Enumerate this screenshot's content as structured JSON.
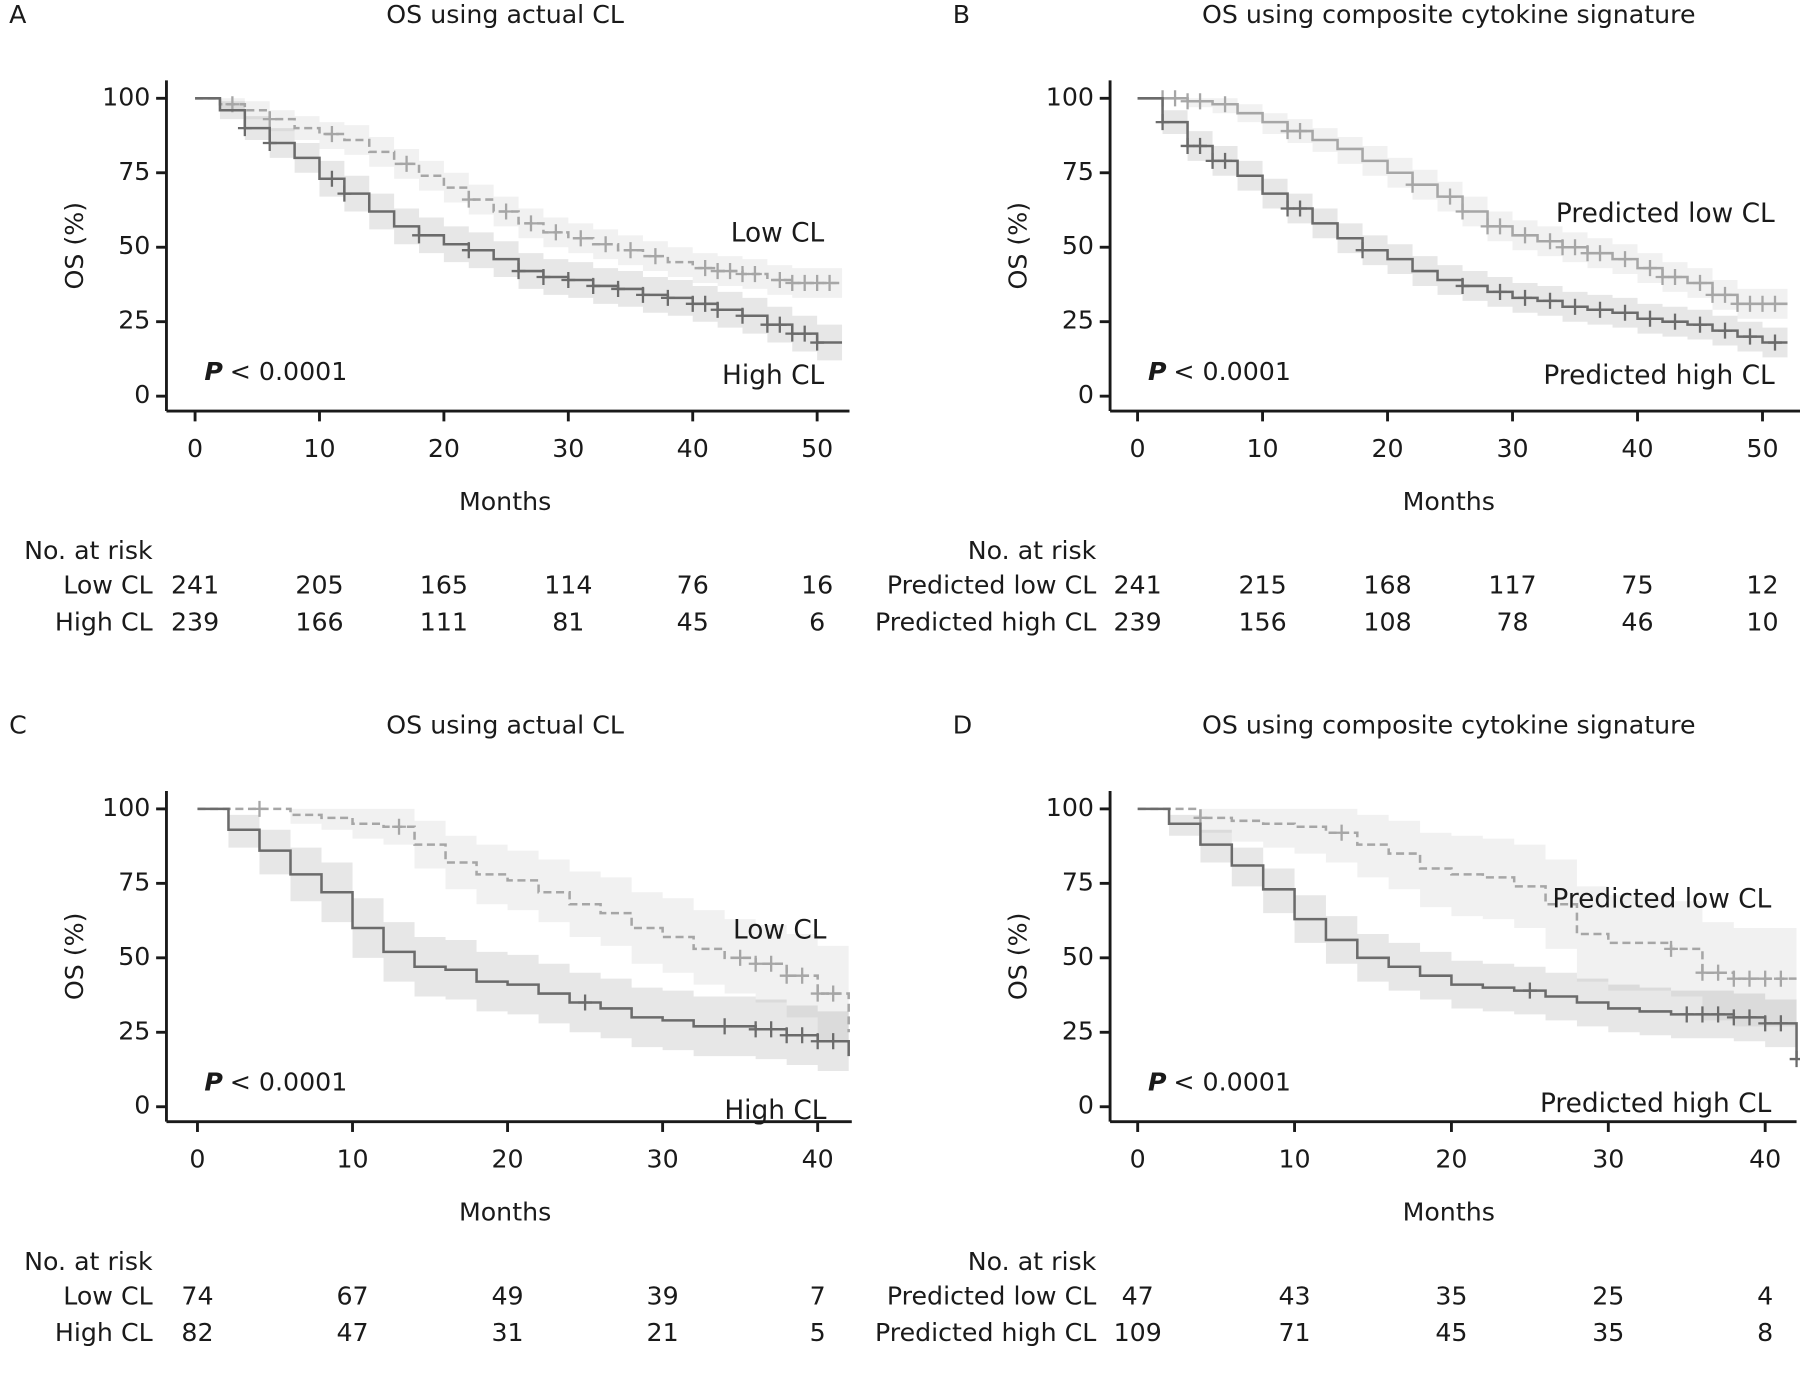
{
  "chart_data": [
    {
      "panel": "A",
      "type": "line",
      "title": "OS using actual CL",
      "x_label": "Months",
      "y_label": "OS (%)",
      "xlim": [
        -2.3,
        52.6
      ],
      "ylim": [
        -5,
        106
      ],
      "xticks": [
        0,
        10,
        20,
        30,
        40,
        50
      ],
      "yticks": [
        0,
        25,
        50,
        75,
        100
      ],
      "x": [
        0,
        2,
        4,
        6,
        8,
        10,
        12,
        14,
        16,
        18,
        20,
        22,
        24,
        26,
        28,
        30,
        32,
        34,
        36,
        38,
        40,
        42,
        44,
        46,
        48,
        50,
        52
      ],
      "p_label": "P",
      "p_text": "< 0.0001",
      "risk_title": "No. at risk",
      "series": [
        {
          "name": "Low CL",
          "color": "#a6a6a6",
          "dashed": true,
          "values": [
            100,
            98,
            96,
            93,
            90,
            88,
            86,
            82,
            78,
            74,
            70,
            66,
            62,
            58,
            55,
            53,
            51,
            49,
            47,
            45,
            43,
            42,
            41,
            39,
            38,
            38,
            38
          ],
          "ci_lower": [
            100,
            96,
            93,
            89,
            86,
            83,
            81,
            77,
            73,
            69,
            65,
            61,
            57,
            53,
            50,
            48,
            46,
            44,
            42,
            40,
            38,
            37,
            36,
            34,
            33,
            33,
            33
          ],
          "ci_upper": [
            100,
            100,
            99,
            96,
            94,
            92,
            91,
            87,
            83,
            79,
            75,
            71,
            67,
            63,
            60,
            58,
            56,
            54,
            52,
            50,
            48,
            47,
            46,
            44,
            43,
            43,
            43
          ],
          "censored": [
            3,
            6,
            11,
            17,
            22,
            25,
            27,
            29,
            31,
            33,
            35,
            37,
            41,
            42,
            43,
            44,
            45,
            47,
            48,
            49,
            50,
            51
          ],
          "at_risk": [
            241,
            205,
            165,
            114,
            76,
            16
          ]
        },
        {
          "name": "High CL",
          "color": "#6b6b6b",
          "dashed": false,
          "values": [
            100,
            96,
            90,
            85,
            80,
            73,
            68,
            62,
            57,
            54,
            51,
            49,
            46,
            42,
            40,
            39,
            37,
            36,
            34,
            33,
            31,
            29,
            27,
            24,
            21,
            18,
            18
          ],
          "ci_lower": [
            100,
            93,
            86,
            80,
            75,
            67,
            62,
            56,
            51,
            48,
            45,
            43,
            40,
            36,
            34,
            33,
            31,
            30,
            28,
            27,
            25,
            23,
            21,
            18,
            15,
            12,
            12
          ],
          "ci_upper": [
            100,
            99,
            94,
            90,
            85,
            79,
            74,
            68,
            63,
            60,
            57,
            55,
            52,
            48,
            46,
            45,
            43,
            42,
            40,
            39,
            37,
            35,
            33,
            30,
            27,
            24,
            24
          ],
          "censored": [
            4,
            6,
            11,
            12,
            18,
            22,
            26,
            28,
            30,
            32,
            34,
            36,
            38,
            40,
            41,
            42,
            44,
            46,
            47,
            48,
            49,
            50
          ],
          "at_risk": [
            239,
            166,
            111,
            81,
            45,
            6
          ]
        }
      ]
    },
    {
      "panel": "B",
      "type": "line",
      "title": "OS using composite cytokine signature",
      "x_label": "Months",
      "y_label": "OS (%)",
      "xlim": [
        -2.2,
        53
      ],
      "ylim": [
        -5,
        106
      ],
      "xticks": [
        0,
        10,
        20,
        30,
        40,
        50
      ],
      "yticks": [
        0,
        25,
        50,
        75,
        100
      ],
      "x": [
        0,
        2,
        4,
        6,
        8,
        10,
        12,
        14,
        16,
        18,
        20,
        22,
        24,
        26,
        28,
        30,
        32,
        34,
        36,
        38,
        40,
        42,
        44,
        46,
        48,
        50,
        52
      ],
      "p_label": "P",
      "p_text": "< 0.0001",
      "risk_title": "No. at risk",
      "series": [
        {
          "name": "Predicted low CL",
          "color": "#a6a6a6",
          "dashed": false,
          "values": [
            100,
            100,
            99,
            98,
            95,
            92,
            89,
            86,
            83,
            79,
            75,
            71,
            67,
            62,
            57,
            54,
            52,
            50,
            48,
            46,
            43,
            40,
            38,
            34,
            31,
            31,
            31
          ],
          "ci_lower": [
            100,
            100,
            97,
            95,
            92,
            88,
            85,
            82,
            78,
            74,
            70,
            66,
            62,
            57,
            52,
            49,
            47,
            45,
            43,
            41,
            38,
            35,
            33,
            29,
            26,
            26,
            26
          ],
          "ci_upper": [
            100,
            100,
            100,
            100,
            98,
            95,
            93,
            90,
            87,
            84,
            80,
            76,
            72,
            67,
            62,
            59,
            57,
            55,
            53,
            51,
            48,
            45,
            43,
            39,
            36,
            36,
            36
          ],
          "censored": [
            2,
            3,
            4,
            5,
            7,
            12,
            13,
            22,
            25,
            26,
            28,
            29,
            31,
            33,
            34,
            35,
            36,
            37,
            39,
            41,
            42,
            43,
            45,
            46,
            47,
            48,
            49,
            50,
            51
          ],
          "at_risk": [
            241,
            215,
            168,
            117,
            75,
            12
          ]
        },
        {
          "name": "Predicted high CL",
          "color": "#6b6b6b",
          "dashed": false,
          "values": [
            100,
            92,
            84,
            79,
            74,
            68,
            63,
            58,
            53,
            49,
            46,
            42,
            39,
            37,
            35,
            33,
            32,
            30,
            29,
            28,
            26,
            25,
            24,
            22,
            20,
            18,
            18
          ],
          "ci_lower": [
            100,
            88,
            79,
            74,
            69,
            63,
            58,
            53,
            48,
            44,
            41,
            37,
            34,
            32,
            30,
            28,
            27,
            25,
            24,
            23,
            21,
            20,
            19,
            17,
            15,
            13,
            13
          ],
          "ci_upper": [
            100,
            96,
            89,
            84,
            79,
            73,
            68,
            63,
            58,
            54,
            51,
            47,
            44,
            42,
            40,
            38,
            37,
            35,
            34,
            33,
            31,
            30,
            29,
            27,
            25,
            23,
            23
          ],
          "censored": [
            2,
            4,
            5,
            6,
            7,
            12,
            13,
            18,
            26,
            29,
            31,
            33,
            35,
            37,
            39,
            41,
            43,
            45,
            47,
            49,
            51
          ],
          "at_risk": [
            239,
            156,
            108,
            78,
            46,
            10
          ]
        }
      ]
    },
    {
      "panel": "C",
      "type": "line",
      "title": "OS using actual CL",
      "x_label": "Months",
      "y_label": "OS (%)",
      "xlim": [
        -2,
        42.2
      ],
      "ylim": [
        -5,
        106
      ],
      "xticks": [
        0,
        10,
        20,
        30,
        40
      ],
      "yticks": [
        0,
        25,
        50,
        75,
        100
      ],
      "x": [
        0,
        2,
        4,
        6,
        8,
        10,
        12,
        14,
        16,
        18,
        20,
        22,
        24,
        26,
        28,
        30,
        32,
        34,
        36,
        38,
        40,
        42
      ],
      "p_label": "P",
      "p_text": "< 0.0001",
      "risk_title": "No. at risk",
      "series": [
        {
          "name": "Low CL",
          "color": "#a6a6a6",
          "dashed": true,
          "values": [
            100,
            100,
            100,
            98,
            97,
            95,
            94,
            88,
            82,
            78,
            76,
            72,
            68,
            65,
            60,
            57,
            53,
            50,
            48,
            44,
            38,
            25
          ],
          "ci_lower": [
            100,
            100,
            100,
            95,
            93,
            90,
            88,
            80,
            73,
            68,
            66,
            62,
            57,
            54,
            48,
            45,
            41,
            38,
            35,
            30,
            22,
            10
          ],
          "ci_upper": [
            100,
            100,
            100,
            100,
            100,
            100,
            100,
            96,
            91,
            88,
            86,
            83,
            79,
            77,
            72,
            70,
            66,
            63,
            61,
            58,
            54,
            45
          ],
          "censored": [
            4,
            13,
            35,
            36,
            37,
            38,
            39,
            40,
            41
          ],
          "at_risk": [
            74,
            67,
            49,
            39,
            7
          ]
        },
        {
          "name": "High CL",
          "color": "#6b6b6b",
          "dashed": false,
          "values": [
            100,
            93,
            86,
            78,
            72,
            60,
            52,
            47,
            46,
            42,
            41,
            38,
            35,
            33,
            30,
            29,
            27,
            27,
            26,
            24,
            22,
            17
          ],
          "ci_lower": [
            100,
            87,
            78,
            69,
            62,
            50,
            42,
            37,
            36,
            32,
            31,
            28,
            25,
            23,
            20,
            19,
            17,
            17,
            16,
            14,
            12,
            5
          ],
          "ci_upper": [
            100,
            98,
            93,
            87,
            82,
            70,
            62,
            57,
            56,
            52,
            51,
            48,
            45,
            43,
            40,
            39,
            37,
            37,
            36,
            34,
            32,
            29
          ],
          "censored": [
            25,
            34,
            36,
            37,
            38,
            39,
            40,
            41
          ],
          "at_risk": [
            82,
            47,
            31,
            21,
            5
          ]
        }
      ]
    },
    {
      "panel": "D",
      "type": "line",
      "title": "OS using composite cytokine signature",
      "x_label": "Months",
      "y_label": "OS (%)",
      "xlim": [
        -1.76,
        42
      ],
      "ylim": [
        -5,
        106
      ],
      "xticks": [
        0,
        10,
        20,
        30,
        40
      ],
      "yticks": [
        0,
        25,
        50,
        75,
        100
      ],
      "x": [
        0,
        2,
        4,
        6,
        8,
        10,
        12,
        14,
        16,
        18,
        20,
        22,
        24,
        26,
        28,
        30,
        32,
        34,
        36,
        38,
        40,
        42
      ],
      "p_label": "P",
      "p_text": "< 0.0001",
      "risk_title": "No. at risk",
      "series": [
        {
          "name": "Predicted low CL",
          "color": "#a6a6a6",
          "dashed": true,
          "values": [
            100,
            100,
            97,
            96,
            95,
            94,
            92,
            88,
            85,
            80,
            78,
            77,
            74,
            68,
            58,
            55,
            55,
            53,
            45,
            43,
            43,
            43
          ],
          "ci_lower": [
            100,
            100,
            92,
            89,
            87,
            85,
            82,
            77,
            73,
            67,
            64,
            63,
            60,
            53,
            42,
            39,
            39,
            37,
            29,
            27,
            27,
            27
          ],
          "ci_upper": [
            100,
            100,
            100,
            100,
            100,
            100,
            100,
            98,
            96,
            92,
            91,
            90,
            88,
            83,
            74,
            71,
            71,
            69,
            62,
            60,
            60,
            60
          ],
          "censored": [
            4,
            13,
            34,
            36,
            37,
            38,
            39,
            40,
            41
          ],
          "at_risk": [
            47,
            43,
            35,
            25,
            4
          ]
        },
        {
          "name": "Predicted high CL",
          "color": "#6b6b6b",
          "dashed": false,
          "values": [
            100,
            95,
            88,
            81,
            73,
            63,
            56,
            50,
            47,
            44,
            41,
            40,
            39,
            37,
            35,
            33,
            32,
            31,
            31,
            30,
            28,
            16
          ],
          "ci_lower": [
            100,
            91,
            82,
            74,
            65,
            55,
            48,
            42,
            39,
            36,
            33,
            32,
            31,
            29,
            27,
            25,
            24,
            23,
            23,
            22,
            20,
            8
          ],
          "ci_upper": [
            100,
            98,
            93,
            87,
            80,
            71,
            64,
            58,
            55,
            52,
            49,
            48,
            47,
            45,
            43,
            41,
            40,
            39,
            39,
            38,
            36,
            26
          ],
          "censored": [
            25,
            35,
            36,
            37,
            38,
            39,
            40,
            41,
            42
          ],
          "at_risk": [
            109,
            71,
            45,
            35,
            8
          ]
        }
      ]
    }
  ]
}
